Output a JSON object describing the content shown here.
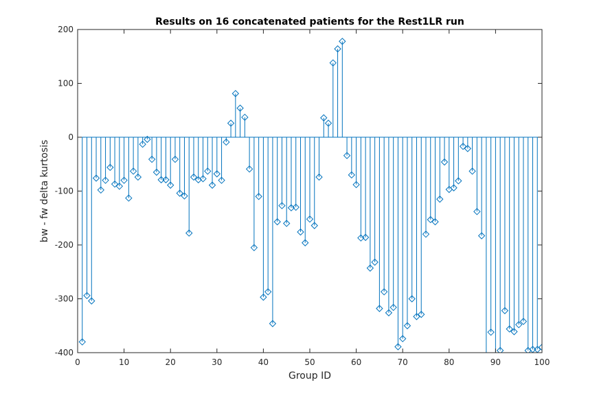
{
  "chart_data": {
    "type": "stem",
    "title": "Results on 16 concatenated patients for the Rest1LR run",
    "xlabel": "Group ID",
    "ylabel": "bw - fw delta kurtosis",
    "xlim": [
      0,
      100
    ],
    "ylim": [
      -400,
      200
    ],
    "xticks": [
      "0",
      "10",
      "20",
      "30",
      "40",
      "50",
      "60",
      "70",
      "80",
      "90",
      "100"
    ],
    "yticks": [
      "-400",
      "-300",
      "-200",
      "-100",
      "0",
      "100",
      "200"
    ],
    "grid": false,
    "legend": "none",
    "series_color": "#0072BD",
    "marker": "diamond",
    "x": [
      1,
      2,
      3,
      4,
      5,
      6,
      7,
      8,
      9,
      10,
      11,
      12,
      13,
      14,
      15,
      16,
      17,
      18,
      19,
      20,
      21,
      22,
      23,
      24,
      25,
      26,
      27,
      28,
      29,
      30,
      31,
      32,
      33,
      34,
      35,
      36,
      37,
      38,
      39,
      40,
      41,
      42,
      43,
      44,
      45,
      46,
      47,
      48,
      49,
      50,
      51,
      52,
      53,
      54,
      55,
      56,
      57,
      58,
      59,
      60,
      61,
      62,
      63,
      64,
      65,
      66,
      67,
      68,
      69,
      70,
      71,
      72,
      73,
      74,
      75,
      76,
      77,
      78,
      79,
      80,
      81,
      82,
      83,
      84,
      85,
      86,
      87,
      88,
      89,
      90,
      91,
      92,
      93,
      94,
      95,
      96,
      97,
      98,
      99,
      100
    ],
    "y": [
      -380,
      -294,
      -304,
      -76,
      -98,
      -80,
      -56,
      -87,
      -91,
      -80,
      -113,
      -63,
      -74,
      -13,
      -4,
      -41,
      -65,
      -79,
      -79,
      -89,
      -41,
      -104,
      -109,
      -178,
      -74,
      -79,
      -77,
      -63,
      -89,
      -68,
      -80,
      -9,
      26,
      81,
      54,
      37,
      -59,
      -205,
      -110,
      -297,
      -287,
      -346,
      -157,
      -127,
      -160,
      -131,
      -130,
      -176,
      -196,
      -152,
      -164,
      -74,
      36,
      26,
      138,
      164,
      178,
      -34,
      -70,
      -88,
      -187,
      -186,
      -243,
      -232,
      -318,
      -287,
      -326,
      -316,
      -389,
      -374,
      -350,
      -300,
      -333,
      -329,
      -180,
      -153,
      -157,
      -115,
      -46,
      -97,
      -94,
      -81,
      -17,
      -21,
      -63,
      -138,
      -183,
      -420,
      -362,
      -420,
      -396,
      -322,
      -356,
      -361,
      -348,
      -342,
      -396,
      -394,
      -394,
      -390
    ]
  }
}
